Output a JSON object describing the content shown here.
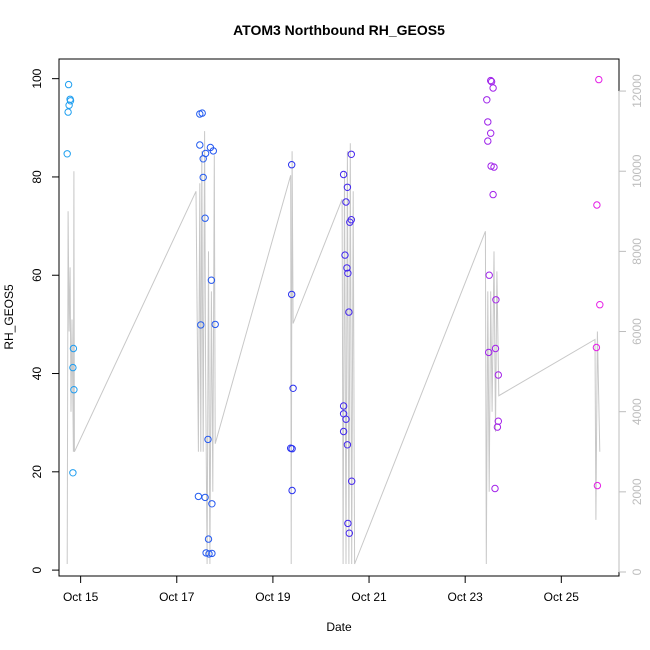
{
  "chart_data": {
    "type": "scatter",
    "title": "ATOM3 Northbound RH_GEOS5",
    "xlabel": "Date",
    "ylabel": "RH_GEOS5",
    "x_ticks": [
      "Oct 15",
      "Oct 17",
      "Oct 19",
      "Oct 21",
      "Oct 23",
      "Oct 25"
    ],
    "y_ticks": [
      0,
      20,
      40,
      60,
      80,
      100
    ],
    "y2_ticks": [
      0,
      2000,
      4000,
      6000,
      8000,
      10000,
      12000
    ],
    "xlim": [
      14.55,
      26.2
    ],
    "ylim": [
      -1.2,
      104
    ],
    "y2lim": [
      -100,
      12800
    ],
    "colors": {
      "altitude_line": "#c8c8c8",
      "point_start": "#1ea0f0",
      "point_mid": "#2828f0",
      "point_end": "#e61ee6"
    },
    "series": [
      {
        "points": [
          {
            "x": 14.75,
            "y": 98.8
          },
          {
            "x": 14.78,
            "y": 95.8
          },
          {
            "x": 14.79,
            "y": 95.5
          },
          {
            "x": 14.76,
            "y": 94.6
          },
          {
            "x": 14.74,
            "y": 93.2
          },
          {
            "x": 14.72,
            "y": 84.7
          },
          {
            "x": 14.85,
            "y": 45.1
          },
          {
            "x": 14.84,
            "y": 41.2
          },
          {
            "x": 14.86,
            "y": 36.7
          },
          {
            "x": 14.84,
            "y": 19.8
          },
          {
            "x": 17.48,
            "y": 92.8
          },
          {
            "x": 17.53,
            "y": 93.0
          },
          {
            "x": 17.48,
            "y": 86.5
          },
          {
            "x": 17.7,
            "y": 86.0
          },
          {
            "x": 17.76,
            "y": 85.3
          },
          {
            "x": 17.6,
            "y": 84.8
          },
          {
            "x": 17.55,
            "y": 83.7
          },
          {
            "x": 17.55,
            "y": 79.9
          },
          {
            "x": 17.59,
            "y": 71.6
          },
          {
            "x": 17.72,
            "y": 59.0
          },
          {
            "x": 17.5,
            "y": 49.9
          },
          {
            "x": 17.8,
            "y": 50.0
          },
          {
            "x": 17.65,
            "y": 26.6
          },
          {
            "x": 17.45,
            "y": 15.0
          },
          {
            "x": 17.59,
            "y": 14.8
          },
          {
            "x": 17.73,
            "y": 13.5
          },
          {
            "x": 17.66,
            "y": 6.3
          },
          {
            "x": 17.61,
            "y": 3.5
          },
          {
            "x": 17.67,
            "y": 3.3
          },
          {
            "x": 17.73,
            "y": 3.4
          },
          {
            "x": 19.39,
            "y": 82.5
          },
          {
            "x": 19.39,
            "y": 56.1
          },
          {
            "x": 19.42,
            "y": 37.0
          },
          {
            "x": 19.37,
            "y": 24.8
          },
          {
            "x": 19.4,
            "y": 24.7
          },
          {
            "x": 19.4,
            "y": 16.2
          },
          {
            "x": 20.47,
            "y": 80.5
          },
          {
            "x": 20.55,
            "y": 77.9
          },
          {
            "x": 20.52,
            "y": 74.9
          },
          {
            "x": 20.63,
            "y": 71.3
          },
          {
            "x": 20.6,
            "y": 70.8
          },
          {
            "x": 20.5,
            "y": 64.1
          },
          {
            "x": 20.54,
            "y": 61.5
          },
          {
            "x": 20.56,
            "y": 60.4
          },
          {
            "x": 20.58,
            "y": 52.5
          },
          {
            "x": 20.47,
            "y": 33.4
          },
          {
            "x": 20.47,
            "y": 31.8
          },
          {
            "x": 20.52,
            "y": 30.7
          },
          {
            "x": 20.47,
            "y": 28.2
          },
          {
            "x": 20.55,
            "y": 25.5
          },
          {
            "x": 20.63,
            "y": 84.6
          },
          {
            "x": 20.64,
            "y": 18.1
          },
          {
            "x": 20.56,
            "y": 9.5
          },
          {
            "x": 20.59,
            "y": 7.5
          },
          {
            "x": 23.53,
            "y": 99.6
          },
          {
            "x": 23.55,
            "y": 99.4
          },
          {
            "x": 23.58,
            "y": 98.1
          },
          {
            "x": 23.45,
            "y": 95.7
          },
          {
            "x": 23.47,
            "y": 91.2
          },
          {
            "x": 23.53,
            "y": 88.9
          },
          {
            "x": 23.47,
            "y": 87.3
          },
          {
            "x": 23.54,
            "y": 82.2
          },
          {
            "x": 23.6,
            "y": 82.0
          },
          {
            "x": 23.58,
            "y": 76.4
          },
          {
            "x": 23.5,
            "y": 60.0
          },
          {
            "x": 23.64,
            "y": 55.0
          },
          {
            "x": 23.63,
            "y": 45.1
          },
          {
            "x": 23.49,
            "y": 44.3
          },
          {
            "x": 23.69,
            "y": 39.7
          },
          {
            "x": 23.69,
            "y": 30.3
          },
          {
            "x": 23.67,
            "y": 29.1
          },
          {
            "x": 23.62,
            "y": 16.6
          },
          {
            "x": 25.78,
            "y": 99.8
          },
          {
            "x": 25.74,
            "y": 74.3
          },
          {
            "x": 25.8,
            "y": 54.0
          },
          {
            "x": 25.73,
            "y": 45.3
          },
          {
            "x": 25.75,
            "y": 17.2
          }
        ]
      }
    ],
    "altitude_path": [
      [
        14.72,
        200
      ],
      [
        14.74,
        9000
      ],
      [
        14.76,
        6000
      ],
      [
        14.78,
        7600
      ],
      [
        14.8,
        4000
      ],
      [
        14.82,
        6300
      ],
      [
        14.85,
        3000
      ],
      [
        14.86,
        10000
      ],
      [
        14.87,
        3000
      ],
      [
        17.4,
        9500
      ],
      [
        17.45,
        3000
      ],
      [
        17.48,
        9700
      ],
      [
        17.5,
        3000
      ],
      [
        17.52,
        10500
      ],
      [
        17.55,
        3000
      ],
      [
        17.58,
        11000
      ],
      [
        17.6,
        5000
      ],
      [
        17.63,
        200
      ],
      [
        17.66,
        8000
      ],
      [
        17.69,
        200
      ],
      [
        17.72,
        7000
      ],
      [
        17.75,
        2000
      ],
      [
        17.78,
        10400
      ],
      [
        17.8,
        3200
      ],
      [
        19.37,
        9900
      ],
      [
        19.38,
        200
      ],
      [
        19.4,
        10500
      ],
      [
        19.42,
        6200
      ],
      [
        20.44,
        9300
      ],
      [
        20.46,
        200
      ],
      [
        20.49,
        10000
      ],
      [
        20.52,
        200
      ],
      [
        20.55,
        10500
      ],
      [
        20.58,
        200
      ],
      [
        20.61,
        10700
      ],
      [
        20.64,
        200
      ],
      [
        20.67,
        9500
      ],
      [
        20.7,
        200
      ],
      [
        23.42,
        8500
      ],
      [
        23.44,
        200
      ],
      [
        23.47,
        7000
      ],
      [
        23.5,
        2000
      ],
      [
        23.53,
        7000
      ],
      [
        23.56,
        4000
      ],
      [
        23.6,
        8000
      ],
      [
        23.63,
        3500
      ],
      [
        23.66,
        7500
      ],
      [
        23.7,
        4400
      ],
      [
        25.7,
        5800
      ],
      [
        25.72,
        1300
      ],
      [
        25.75,
        6000
      ],
      [
        25.8,
        3000
      ]
    ]
  }
}
